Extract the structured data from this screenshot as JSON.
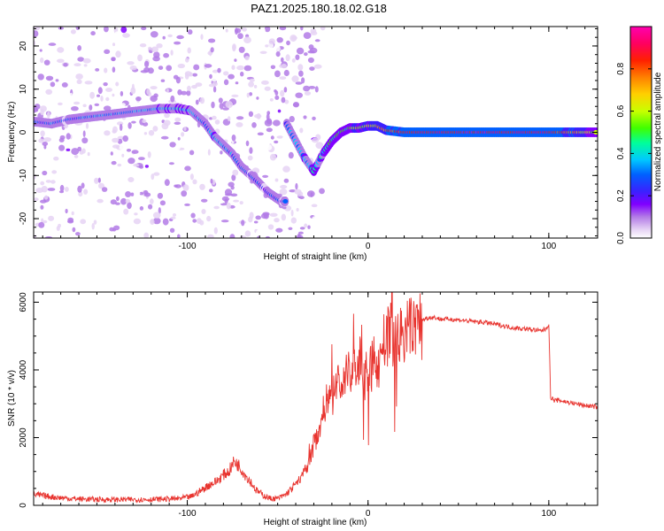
{
  "title": "PAZ1.2025.180.18.02.G18",
  "colors": {
    "snr_line": "#e8342f",
    "colormap": [
      "#ffffff",
      "#e6d3f5",
      "#b37be6",
      "#8000ff",
      "#3b20ff",
      "#0060ff",
      "#00c8ff",
      "#00ff9a",
      "#40ff00",
      "#c8ff00",
      "#ffd000",
      "#ff8000",
      "#ff2000",
      "#ff0060",
      "#ff00b0"
    ]
  },
  "chart_data": [
    {
      "type": "heatmap",
      "xlabel": "Height of straight line (km)",
      "ylabel": "Frequency (Hz)",
      "xlim": [
        -185,
        127
      ],
      "ylim": [
        -24.5,
        24.5
      ],
      "x_ticks": [
        -100,
        0,
        100
      ],
      "x_tick_labels": [
        "-100",
        "0",
        "100"
      ],
      "y_ticks": [
        -20,
        -10,
        0,
        10,
        20
      ],
      "y_tick_labels": [
        "-20",
        "-10",
        "0",
        "10",
        "20"
      ],
      "colorbar": {
        "label": "Normalized spectral amplitude",
        "range": [
          0,
          1
        ],
        "ticks": [
          0.0,
          0.2,
          0.4,
          0.6,
          0.8
        ],
        "tick_labels": [
          "0.0",
          "0.2",
          "0.4",
          "0.6",
          "0.8"
        ]
      },
      "ridge": [
        [
          -185,
          2.5,
          0.3
        ],
        [
          -175,
          2.0,
          0.35
        ],
        [
          -165,
          3.0,
          0.3
        ],
        [
          -155,
          3.5,
          0.35
        ],
        [
          -145,
          4.0,
          0.35
        ],
        [
          -135,
          4.5,
          0.38
        ],
        [
          -125,
          5.0,
          0.4
        ],
        [
          -115,
          5.5,
          0.4
        ],
        [
          -105,
          5.5,
          0.45
        ],
        [
          -98,
          5.0,
          0.4
        ],
        [
          -90,
          2.0,
          0.35
        ],
        [
          -85,
          -1.0,
          0.4
        ],
        [
          -80,
          -3.0,
          0.38
        ],
        [
          -75,
          -5.0,
          0.35
        ],
        [
          -70,
          -8.0,
          0.32
        ],
        [
          -62,
          -11.0,
          0.32
        ],
        [
          -55,
          -14.0,
          0.3
        ],
        [
          -48,
          -16.0,
          0.28
        ],
        [
          -45,
          2.0,
          0.35
        ],
        [
          -40,
          -2.0,
          0.38
        ],
        [
          -35,
          -6.0,
          0.4
        ],
        [
          -30,
          -9.0,
          0.45
        ],
        [
          -25,
          -5.0,
          0.45
        ],
        [
          -20,
          -2.0,
          0.5
        ],
        [
          -15,
          0.0,
          0.55
        ],
        [
          -10,
          1.0,
          0.55
        ],
        [
          -5,
          1.0,
          0.6
        ],
        [
          0,
          1.5,
          0.65
        ],
        [
          5,
          1.5,
          0.7
        ],
        [
          10,
          0.5,
          0.8
        ],
        [
          20,
          0.0,
          0.85
        ],
        [
          40,
          0.0,
          0.9
        ],
        [
          60,
          0.0,
          0.92
        ],
        [
          80,
          0.0,
          0.9
        ],
        [
          100,
          0.0,
          0.92
        ],
        [
          115,
          0.0,
          0.75
        ],
        [
          127,
          0.0,
          0.6
        ]
      ]
    },
    {
      "type": "line",
      "xlabel": "Height of straight line (km)",
      "ylabel": "SNR (10 * v/v)",
      "xlim": [
        -185,
        127
      ],
      "ylim": [
        0,
        6300
      ],
      "x_ticks": [
        -100,
        0,
        100
      ],
      "x_tick_labels": [
        "-100",
        "0",
        "100"
      ],
      "y_ticks": [
        0,
        2000,
        4000,
        6000
      ],
      "y_tick_labels": [
        "0",
        "2000",
        "4000",
        "6000"
      ],
      "series": [
        {
          "x": [
            -185,
            -175,
            -165,
            -155,
            -145,
            -135,
            -125,
            -115,
            -105,
            -98,
            -92,
            -88,
            -84,
            -80,
            -77,
            -74,
            -71,
            -68,
            -65,
            -62,
            -58,
            -54,
            -50,
            -46,
            -42,
            -39,
            -36,
            -34,
            -32,
            -30,
            -28,
            -26,
            -24,
            -22,
            -20,
            -18,
            -16,
            -14,
            -12,
            -10,
            -8,
            -6,
            -4,
            -2,
            0,
            2,
            4,
            6,
            8,
            10,
            12,
            14,
            16,
            18,
            20,
            22,
            25,
            28,
            31,
            34,
            37,
            40,
            45,
            50,
            55,
            60,
            65,
            70,
            75,
            80,
            85,
            90,
            95,
            98,
            100,
            101,
            103,
            106,
            110,
            115,
            120,
            127
          ],
          "y": [
            320,
            250,
            200,
            180,
            170,
            170,
            170,
            180,
            200,
            250,
            450,
            600,
            700,
            900,
            1000,
            1300,
            1150,
            900,
            700,
            450,
            300,
            200,
            200,
            300,
            500,
            700,
            900,
            1100,
            1400,
            1800,
            2100,
            2500,
            2900,
            3300,
            3100,
            3500,
            3800,
            3300,
            4300,
            3700,
            4200,
            4000,
            4300,
            3700,
            4000,
            4100,
            4400,
            4000,
            4900,
            4700,
            5300,
            4800,
            5000,
            5000,
            5100,
            5200,
            5300,
            5400,
            5500,
            5550,
            5550,
            5500,
            5500,
            5480,
            5450,
            5420,
            5400,
            5350,
            5300,
            5250,
            5220,
            5200,
            5150,
            5200,
            5350,
            3200,
            3100,
            3100,
            3050,
            3000,
            2950,
            2900
          ]
        }
      ]
    }
  ]
}
